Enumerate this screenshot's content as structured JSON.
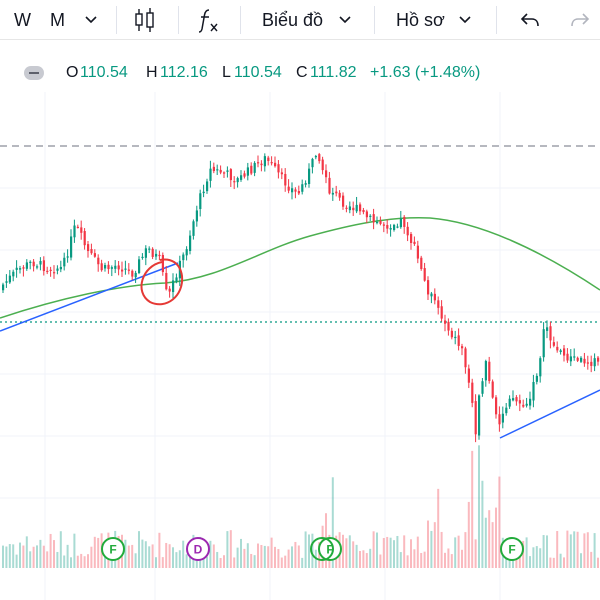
{
  "toolbar": {
    "interval_w": "W",
    "interval_m": "M",
    "indicators_icon": "fx-icon",
    "chart_type_label": "Biểu đồ",
    "profile_label": "Hồ sơ",
    "undo_icon": "undo-icon",
    "redo_icon": "redo-icon"
  },
  "ohlc": {
    "o_label": "O",
    "o_value": "110.54",
    "h_label": "H",
    "h_value": "112.16",
    "l_label": "L",
    "l_value": "110.54",
    "c_label": "C",
    "c_value": "111.82",
    "change": "+1.63 (+1.48%)"
  },
  "colors": {
    "up": "#089981",
    "down": "#f23645",
    "ma": "#4caf50",
    "trend": "#2962ff",
    "annotation": "#e53935"
  },
  "events": [
    {
      "letter": "F",
      "type": "financial"
    },
    {
      "letter": "D",
      "type": "dividend"
    },
    {
      "letter": "F",
      "type": "financial"
    },
    {
      "letter": "F",
      "type": "financial"
    }
  ],
  "chart_data": {
    "type": "candlestick",
    "overlays": [
      "moving-average",
      "trendline",
      "trendline",
      "circle-annotation",
      "dashed-horizontal-line",
      "dotted-horizontal-line"
    ],
    "volume": true
  }
}
